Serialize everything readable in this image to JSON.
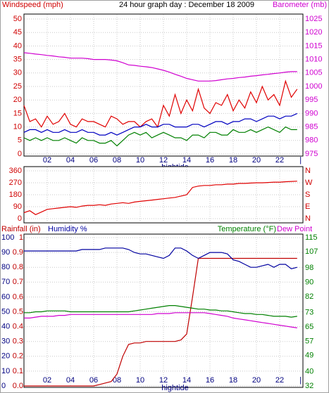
{
  "chart_data": [
    {
      "type": "line",
      "title": "24 hour graph day : December 18 2009",
      "ylabel": "Windspeed (mph)",
      "ycolor": "#d00000",
      "y2label": "Barometer (mb)",
      "y2color": "#d000d0",
      "annotation": {
        "text": "hightide",
        "x": 13
      },
      "x": [
        0,
        0.5,
        1,
        1.5,
        2,
        2.5,
        3,
        3.5,
        4,
        4.5,
        5,
        5.5,
        6,
        6.5,
        7,
        7.5,
        8,
        8.5,
        9,
        9.5,
        10,
        10.5,
        11,
        11.5,
        12,
        12.5,
        13,
        13.5,
        14,
        14.5,
        15,
        15.5,
        16,
        16.5,
        17,
        17.5,
        18,
        18.5,
        19,
        19.5,
        20,
        20.5,
        21,
        21.5,
        22,
        22.5,
        23,
        23.5
      ],
      "xlim": [
        0,
        24
      ],
      "xticks": [
        {
          "value": 2,
          "label": "02"
        },
        {
          "value": 4,
          "label": "04"
        },
        {
          "value": 6,
          "label": "06"
        },
        {
          "value": 8,
          "label": "08"
        },
        {
          "value": 10,
          "label": "10"
        },
        {
          "value": 12,
          "label": "12"
        },
        {
          "value": 14,
          "label": "14"
        },
        {
          "value": 16,
          "label": "16"
        },
        {
          "value": 18,
          "label": "18"
        },
        {
          "value": 20,
          "label": "20"
        },
        {
          "value": 22,
          "label": "22"
        },
        {
          "value": 23.8,
          "label": "|"
        }
      ],
      "ylim": [
        0,
        50
      ],
      "yticks": [
        0,
        5,
        10,
        15,
        20,
        25,
        30,
        35,
        40,
        45,
        50
      ],
      "y2lim": [
        975,
        1025
      ],
      "y2ticks": [
        975,
        980,
        985,
        990,
        995,
        1000,
        1005,
        1010,
        1015,
        1020,
        1025
      ],
      "grid": true,
      "series": [
        {
          "color": "#e00000",
          "values": [
            18,
            12,
            13,
            10,
            14,
            11,
            12,
            15,
            11,
            10,
            13,
            12,
            12,
            11,
            10,
            14,
            13,
            11,
            12,
            12,
            10,
            12,
            13,
            10,
            18,
            14,
            22,
            15,
            20,
            16,
            24,
            17,
            15,
            19,
            18,
            22,
            16,
            20,
            17,
            23,
            19,
            25,
            20,
            22,
            18,
            27,
            21,
            24
          ]
        },
        {
          "color": "#0000c0",
          "values": [
            8,
            9,
            9,
            8,
            9,
            8,
            8,
            9,
            8,
            8,
            9,
            8,
            8,
            7,
            7,
            8,
            7,
            8,
            9,
            10,
            10,
            11,
            10,
            10,
            11,
            11,
            10,
            10,
            10,
            11,
            11,
            10,
            11,
            12,
            12,
            11,
            12,
            12,
            13,
            13,
            12,
            13,
            14,
            14,
            13,
            14,
            14,
            15
          ]
        },
        {
          "color": "#008000",
          "values": [
            6,
            5,
            6,
            5,
            6,
            5,
            5,
            6,
            5,
            4,
            6,
            5,
            5,
            4,
            4,
            5,
            3,
            5,
            7,
            8,
            7,
            8,
            6,
            7,
            8,
            7,
            6,
            6,
            5,
            7,
            7,
            6,
            8,
            8,
            7,
            7,
            9,
            8,
            8,
            9,
            8,
            9,
            10,
            9,
            8,
            10,
            9,
            9
          ]
        },
        {
          "name": "Barometer (mb)",
          "color": "#d000d0",
          "axis": "y2",
          "values": [
            1012.5,
            1012.3,
            1012,
            1011.8,
            1011.5,
            1011.3,
            1011,
            1010.8,
            1010.5,
            1010.5,
            1010.5,
            1010.3,
            1010,
            1010,
            1010,
            1009.8,
            1009.5,
            1008.8,
            1008,
            1007.8,
            1007.5,
            1007.3,
            1007,
            1006.5,
            1006,
            1005.3,
            1004.5,
            1003.8,
            1003,
            1002.5,
            1002,
            1002,
            1002,
            1002.2,
            1002.5,
            1002.8,
            1003,
            1003.3,
            1003.5,
            1003.8,
            1004,
            1004.3,
            1004.5,
            1004.8,
            1005,
            1005.3,
            1005.5,
            1005.5
          ]
        }
      ]
    },
    {
      "type": "line",
      "ycolor": "#d00000",
      "y2color": "#d00000",
      "x": [
        0,
        0.5,
        1,
        1.5,
        2,
        2.5,
        3,
        3.5,
        4,
        4.5,
        5,
        5.5,
        6,
        6.5,
        7,
        7.5,
        8,
        8.5,
        9,
        9.5,
        10,
        10.5,
        11,
        11.5,
        12,
        12.5,
        13,
        13.5,
        14,
        14.5,
        15,
        15.5,
        16,
        16.5,
        17,
        17.5,
        18,
        18.5,
        19,
        19.5,
        20,
        20.5,
        21,
        21.5,
        22,
        22.5,
        23,
        23.5
      ],
      "xlim": [
        0,
        24
      ],
      "xticks": [
        2,
        4,
        6,
        8,
        10,
        12,
        14,
        16,
        18,
        20,
        22
      ],
      "xtick_labels": false,
      "ylim": [
        0,
        360
      ],
      "yticks": [
        0,
        90,
        180,
        270,
        360
      ],
      "y2lim": [
        0,
        360
      ],
      "y2ticks": [
        {
          "value": 0,
          "label": "N"
        },
        {
          "value": 90,
          "label": "E"
        },
        {
          "value": 180,
          "label": "S"
        },
        {
          "value": 270,
          "label": "W"
        },
        {
          "value": 360,
          "label": "N"
        }
      ],
      "grid": true,
      "series": [
        {
          "color": "#e00000",
          "values": [
            45,
            60,
            30,
            50,
            70,
            75,
            80,
            85,
            90,
            85,
            95,
            100,
            100,
            105,
            100,
            110,
            115,
            120,
            115,
            125,
            130,
            135,
            140,
            145,
            150,
            155,
            160,
            170,
            180,
            235,
            245,
            250,
            250,
            255,
            255,
            260,
            260,
            265,
            265,
            268,
            270,
            270,
            272,
            275,
            275,
            278,
            280,
            282
          ]
        }
      ]
    },
    {
      "type": "line",
      "ycolor": "#000080",
      "y3color": "#c00000",
      "y2color": "#008000",
      "annotation": {
        "text": "hightide",
        "x": 13
      },
      "x": [
        0,
        0.5,
        1,
        1.5,
        2,
        2.5,
        3,
        3.5,
        4,
        4.5,
        5,
        5.5,
        6,
        6.5,
        7,
        7.5,
        8,
        8.5,
        9,
        9.5,
        10,
        10.5,
        11,
        11.5,
        12,
        12.5,
        13,
        13.5,
        14,
        14.5,
        15,
        15.5,
        16,
        16.5,
        17,
        17.5,
        18,
        18.5,
        19,
        19.5,
        20,
        20.5,
        21,
        21.5,
        22,
        22.5,
        23,
        23.5
      ],
      "xlim": [
        0,
        24
      ],
      "xticks": [
        {
          "value": 2,
          "label": "02"
        },
        {
          "value": 4,
          "label": "04"
        },
        {
          "value": 6,
          "label": "06"
        },
        {
          "value": 8,
          "label": "08"
        },
        {
          "value": 10,
          "label": "10"
        },
        {
          "value": 12,
          "label": "12"
        },
        {
          "value": 14,
          "label": "14"
        },
        {
          "value": 16,
          "label": "16"
        },
        {
          "value": 18,
          "label": "18"
        },
        {
          "value": 20,
          "label": "20"
        },
        {
          "value": 22,
          "label": "22"
        },
        {
          "value": 23.8,
          "label": "|"
        }
      ],
      "ylim": [
        0,
        100
      ],
      "yticks": [
        0,
        10,
        20,
        30,
        40,
        50,
        60,
        70,
        80,
        90,
        100
      ],
      "y3lim": [
        0,
        1
      ],
      "y3ticks": [
        {
          "value": 0,
          "label": "0.0"
        },
        0.1,
        0.2,
        0.3,
        0.4,
        0.5,
        0.6,
        0.7,
        0.8,
        0.9,
        1
      ],
      "y2lim": [
        32,
        115
      ],
      "y2ticks": [
        32,
        40,
        49,
        57,
        65,
        73,
        82,
        90,
        98,
        107,
        115
      ],
      "grid": true,
      "series": [
        {
          "name": "Rainfall (in)",
          "color": "#c00000",
          "axis": "y3",
          "values": [
            0,
            0,
            0,
            0,
            0,
            0,
            0,
            0,
            0,
            0,
            0,
            0,
            0,
            0.01,
            0.02,
            0.03,
            0.08,
            0.2,
            0.28,
            0.29,
            0.29,
            0.3,
            0.3,
            0.3,
            0.3,
            0.3,
            0.3,
            0.31,
            0.35,
            0.6,
            0.86,
            0.86,
            0.86,
            0.86,
            0.86,
            0.86,
            0.86,
            0.86,
            0.86,
            0.86,
            0.86,
            0.86,
            0.86,
            0.86,
            0.86,
            0.86,
            0.86,
            0.86
          ]
        },
        {
          "name": "Humidity %",
          "color": "#0000a0",
          "values": [
            91,
            91,
            91,
            91,
            91,
            91,
            91,
            91,
            91,
            91,
            92,
            92,
            92,
            92,
            93,
            93,
            93,
            93,
            92,
            90,
            89,
            89,
            88,
            87,
            86,
            88,
            93,
            93,
            91,
            88,
            86,
            88,
            90,
            90,
            90,
            89,
            85,
            84,
            82,
            80,
            80,
            81,
            82,
            80,
            82,
            82,
            79,
            80
          ]
        },
        {
          "name": "Temperature (°F)",
          "color": "#008000",
          "axis": "y2",
          "values": [
            73,
            73,
            73.5,
            73.5,
            74,
            74,
            74,
            74,
            73.5,
            73.5,
            73.5,
            73.5,
            73.5,
            73.5,
            73.5,
            73.5,
            73.5,
            73.5,
            73.5,
            74,
            74.5,
            75,
            75.5,
            76,
            76.5,
            77,
            77,
            76.5,
            76,
            75.5,
            75,
            75,
            74.5,
            74.5,
            74,
            74,
            73.5,
            73,
            72.5,
            72.5,
            72,
            72,
            71.5,
            71,
            71,
            71,
            70.5,
            71
          ]
        },
        {
          "name": "Dew Point",
          "color": "#d000d0",
          "axis": "y2",
          "values": [
            70,
            70,
            70.5,
            71,
            71,
            71,
            71.5,
            71.5,
            72,
            72,
            72,
            72,
            72,
            72,
            72,
            72,
            72,
            72,
            72,
            72,
            72,
            72,
            72,
            72.5,
            72.5,
            72.5,
            73,
            73,
            73,
            73,
            73,
            73,
            72.5,
            72,
            71.5,
            71,
            70,
            69.5,
            69,
            68.5,
            68,
            67.5,
            67,
            66.5,
            66,
            65.5,
            65,
            64.5
          ]
        }
      ]
    }
  ]
}
